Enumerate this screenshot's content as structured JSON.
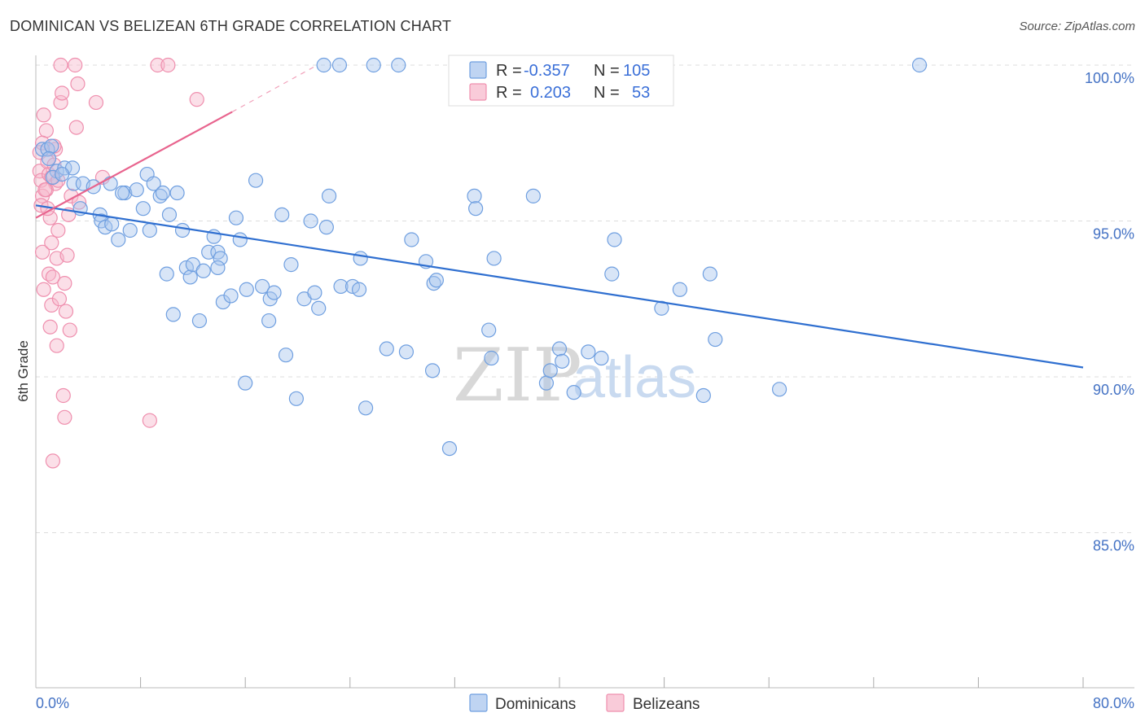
{
  "title": "DOMINICAN VS BELIZEAN 6TH GRADE CORRELATION CHART",
  "source": "Source: ZipAtlas.com",
  "watermark": {
    "zip": "ZIP",
    "atlas": "atlas"
  },
  "colors": {
    "dominicans_fill": "#a9c6ee",
    "dominicans_stroke": "#6f9fe0",
    "dominicans_line": "#2f6fd0",
    "belizeans_fill": "#f7b9cc",
    "belizeans_stroke": "#ef8fae",
    "belizeans_line": "#e8648e",
    "tick_label": "#4472c4",
    "grid": "#dddddd"
  },
  "legend": {
    "rows": [
      {
        "r_label": "R =",
        "r_value": "-0.357",
        "n_label": "N =",
        "n_value": "105"
      },
      {
        "r_label": "R =",
        "r_value": "0.203",
        "n_label": "N =",
        "n_value": "53"
      }
    ]
  },
  "chart_data": {
    "type": "scatter",
    "title": "DOMINICAN VS BELIZEAN 6TH GRADE CORRELATION CHART",
    "xlabel": "",
    "ylabel": "6th Grade",
    "xlim": [
      0,
      80
    ],
    "ylim": [
      80.7,
      100.7
    ],
    "x_tick_labels": [
      "0.0%",
      "80.0%"
    ],
    "y_ticks": [
      85,
      90,
      95,
      100
    ],
    "y_tick_labels": [
      "85.0%",
      "90.0%",
      "95.0%",
      "100.0%"
    ],
    "grid": true,
    "legend_position": "top-center",
    "series": [
      {
        "name": "Dominicans",
        "r": -0.357,
        "n": 105,
        "trend": {
          "x": [
            0,
            80
          ],
          "y": [
            95.5,
            90.3
          ]
        },
        "points": [
          [
            0.5,
            97.3
          ],
          [
            0.9,
            97.3
          ],
          [
            1.2,
            97.4
          ],
          [
            1.6,
            96.6
          ],
          [
            2.2,
            96.7
          ],
          [
            2.8,
            96.7
          ],
          [
            2.9,
            96.2
          ],
          [
            3.6,
            96.2
          ],
          [
            4.4,
            96.1
          ],
          [
            3.4,
            95.4
          ],
          [
            4.9,
            95.2
          ],
          [
            5.0,
            95.0
          ],
          [
            5.3,
            94.8
          ],
          [
            5.8,
            94.9
          ],
          [
            5.7,
            96.2
          ],
          [
            6.3,
            94.4
          ],
          [
            6.8,
            95.9
          ],
          [
            7.2,
            94.7
          ],
          [
            7.7,
            96.0
          ],
          [
            8.2,
            95.4
          ],
          [
            8.5,
            96.5
          ],
          [
            8.7,
            94.7
          ],
          [
            9.0,
            96.2
          ],
          [
            9.5,
            95.8
          ],
          [
            9.7,
            95.9
          ],
          [
            10.0,
            93.3
          ],
          [
            10.2,
            95.2
          ],
          [
            10.5,
            92.0
          ],
          [
            10.8,
            95.9
          ],
          [
            11.2,
            94.7
          ],
          [
            11.5,
            93.5
          ],
          [
            11.8,
            93.2
          ],
          [
            12.0,
            93.6
          ],
          [
            12.5,
            91.8
          ],
          [
            12.8,
            93.4
          ],
          [
            13.2,
            94.0
          ],
          [
            13.6,
            94.5
          ],
          [
            13.9,
            94.0
          ],
          [
            14.1,
            93.8
          ],
          [
            14.3,
            92.4
          ],
          [
            14.9,
            92.6
          ],
          [
            15.3,
            95.1
          ],
          [
            15.6,
            94.4
          ],
          [
            16.0,
            89.8
          ],
          [
            16.8,
            96.3
          ],
          [
            17.3,
            92.9
          ],
          [
            17.8,
            91.8
          ],
          [
            17.9,
            92.5
          ],
          [
            18.2,
            92.7
          ],
          [
            18.8,
            95.2
          ],
          [
            19.1,
            90.7
          ],
          [
            19.5,
            93.6
          ],
          [
            19.9,
            89.3
          ],
          [
            20.5,
            92.5
          ],
          [
            21.0,
            95.0
          ],
          [
            21.3,
            92.7
          ],
          [
            21.6,
            92.2
          ],
          [
            22.0,
            100.0
          ],
          [
            22.2,
            94.8
          ],
          [
            22.4,
            95.8
          ],
          [
            23.2,
            100.0
          ],
          [
            23.3,
            92.9
          ],
          [
            24.2,
            92.9
          ],
          [
            24.8,
            93.8
          ],
          [
            25.2,
            89.0
          ],
          [
            25.8,
            100.0
          ],
          [
            26.8,
            90.9
          ],
          [
            27.7,
            100.0
          ],
          [
            28.3,
            90.8
          ],
          [
            28.7,
            94.4
          ],
          [
            29.8,
            93.7
          ],
          [
            30.3,
            90.2
          ],
          [
            30.4,
            93.0
          ],
          [
            30.6,
            93.1
          ],
          [
            31.6,
            87.7
          ],
          [
            32.2,
            100.0
          ],
          [
            33.5,
            95.8
          ],
          [
            33.6,
            95.4
          ],
          [
            34.6,
            91.5
          ],
          [
            34.8,
            90.6
          ],
          [
            35.0,
            93.8
          ],
          [
            38.0,
            95.8
          ],
          [
            39.0,
            89.8
          ],
          [
            39.3,
            90.2
          ],
          [
            40.0,
            90.9
          ],
          [
            40.2,
            90.5
          ],
          [
            41.1,
            89.5
          ],
          [
            42.2,
            90.8
          ],
          [
            43.2,
            90.6
          ],
          [
            44.2,
            94.4
          ],
          [
            44.0,
            93.3
          ],
          [
            47.8,
            92.2
          ],
          [
            49.2,
            92.8
          ],
          [
            51.0,
            89.4
          ],
          [
            51.5,
            93.3
          ],
          [
            51.9,
            91.2
          ],
          [
            56.8,
            89.6
          ],
          [
            67.5,
            100.0
          ],
          [
            1.0,
            97.0
          ],
          [
            1.3,
            96.4
          ],
          [
            2.0,
            96.5
          ],
          [
            6.6,
            95.9
          ],
          [
            13.9,
            93.5
          ],
          [
            16.1,
            92.8
          ],
          [
            24.7,
            92.8
          ]
        ]
      },
      {
        "name": "Belizeans",
        "r": 0.203,
        "n": 53,
        "trend": {
          "x": [
            0,
            15
          ],
          "y": [
            95.1,
            98.5
          ],
          "dashed_to": {
            "x": 21.5,
            "y": 100.0
          }
        },
        "points": [
          [
            0.3,
            97.2
          ],
          [
            0.3,
            96.6
          ],
          [
            0.4,
            96.3
          ],
          [
            0.5,
            95.8
          ],
          [
            0.4,
            95.5
          ],
          [
            0.5,
            94.0
          ],
          [
            0.6,
            92.8
          ],
          [
            0.6,
            98.4
          ],
          [
            0.8,
            97.9
          ],
          [
            0.9,
            96.9
          ],
          [
            1.0,
            96.5
          ],
          [
            1.1,
            95.1
          ],
          [
            1.2,
            94.3
          ],
          [
            1.0,
            93.3
          ],
          [
            1.2,
            92.3
          ],
          [
            1.1,
            91.6
          ],
          [
            1.4,
            96.8
          ],
          [
            1.5,
            96.2
          ],
          [
            1.6,
            93.8
          ],
          [
            1.6,
            91.0
          ],
          [
            1.7,
            94.7
          ],
          [
            1.8,
            92.5
          ],
          [
            1.9,
            98.8
          ],
          [
            1.9,
            100.0
          ],
          [
            2.0,
            99.1
          ],
          [
            2.1,
            89.4
          ],
          [
            2.2,
            88.7
          ],
          [
            2.3,
            92.1
          ],
          [
            2.4,
            93.9
          ],
          [
            2.5,
            95.2
          ],
          [
            2.6,
            91.5
          ],
          [
            2.7,
            95.8
          ],
          [
            3.0,
            100.0
          ],
          [
            3.1,
            98.0
          ],
          [
            3.2,
            99.4
          ],
          [
            3.3,
            95.6
          ],
          [
            4.6,
            98.8
          ],
          [
            5.1,
            96.4
          ],
          [
            8.7,
            88.6
          ],
          [
            9.3,
            100.0
          ],
          [
            10.1,
            100.0
          ],
          [
            12.3,
            98.9
          ],
          [
            1.3,
            87.3
          ],
          [
            1.5,
            97.3
          ],
          [
            0.8,
            96.0
          ],
          [
            0.9,
            95.4
          ],
          [
            1.2,
            96.4
          ],
          [
            1.3,
            93.2
          ],
          [
            0.7,
            96.0
          ],
          [
            1.7,
            96.3
          ],
          [
            1.4,
            97.4
          ],
          [
            0.5,
            97.5
          ],
          [
            2.2,
            93.0
          ]
        ]
      }
    ]
  },
  "bottom_legend": [
    {
      "label": "Dominicans"
    },
    {
      "label": "Belizeans"
    }
  ]
}
